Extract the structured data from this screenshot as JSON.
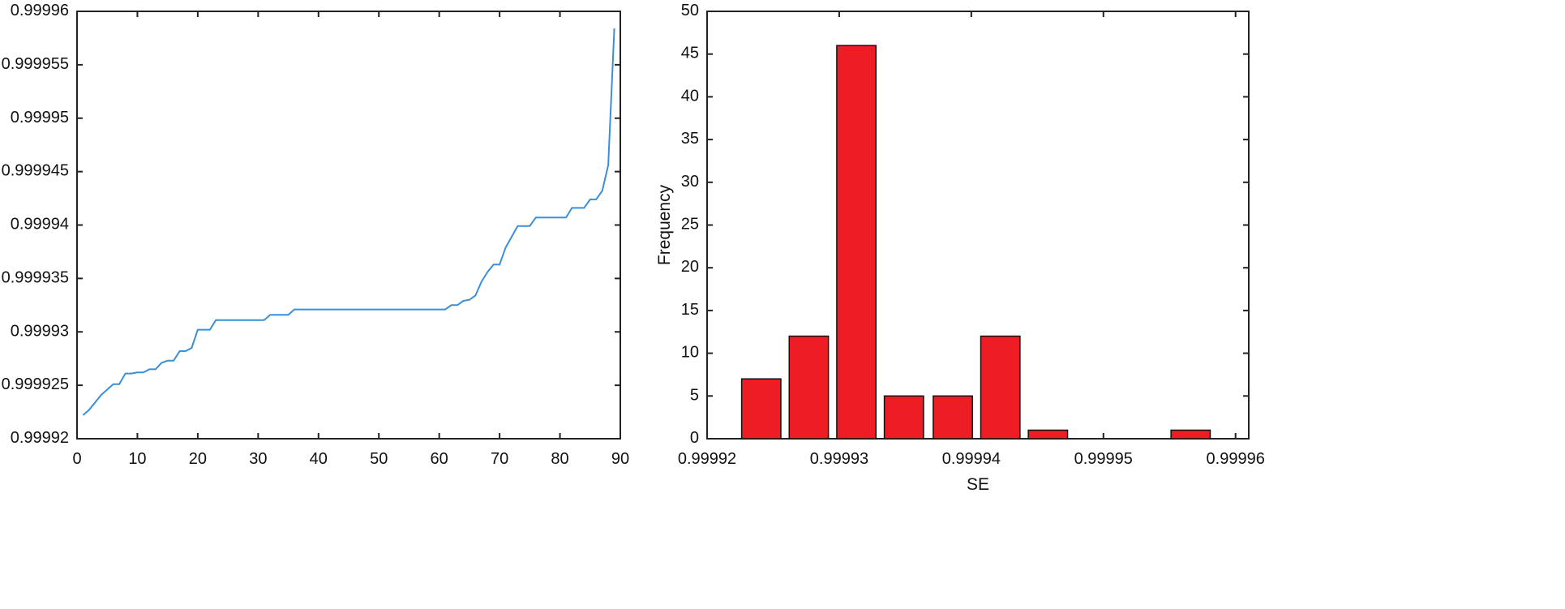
{
  "chart_data": [
    {
      "type": "line",
      "title": "",
      "xlabel": "",
      "ylabel": "",
      "xlim": [
        0,
        90
      ],
      "ylim": [
        0.99992,
        0.99996
      ],
      "xticks": [
        "0",
        "10",
        "20",
        "30",
        "40",
        "50",
        "60",
        "70",
        "80",
        "90"
      ],
      "xtick_values": [
        0,
        10,
        20,
        30,
        40,
        50,
        60,
        70,
        80,
        90
      ],
      "yticks": [
        "0.99992",
        "0.999925",
        "0.99993",
        "0.999935",
        "0.99994",
        "0.999945",
        "0.99995",
        "0.999955",
        "0.99996"
      ],
      "ytick_values": [
        0.99992,
        0.999925,
        0.99993,
        0.999935,
        0.99994,
        0.999945,
        0.99995,
        0.999955,
        0.99996
      ],
      "grid": false,
      "color": "#3a8fd6",
      "x": [
        1,
        2,
        3,
        4,
        5,
        6,
        7,
        8,
        9,
        10,
        11,
        12,
        13,
        14,
        15,
        16,
        17,
        18,
        19,
        20,
        21,
        22,
        23,
        24,
        25,
        26,
        27,
        28,
        29,
        30,
        31,
        32,
        33,
        34,
        35,
        36,
        37,
        38,
        39,
        40,
        41,
        42,
        43,
        44,
        45,
        46,
        47,
        48,
        49,
        50,
        51,
        52,
        53,
        54,
        55,
        56,
        57,
        58,
        59,
        60,
        61,
        62,
        63,
        64,
        65,
        66,
        67,
        68,
        69,
        70,
        71,
        72,
        73,
        74,
        75,
        76,
        77,
        78,
        79,
        80,
        81,
        82,
        83,
        84,
        85,
        86,
        87,
        88,
        89
      ],
      "y": [
        0.9999222,
        0.9999227,
        0.9999234,
        0.9999241,
        0.9999246,
        0.9999251,
        0.9999251,
        0.9999261,
        0.9999261,
        0.9999262,
        0.9999262,
        0.9999265,
        0.9999265,
        0.9999271,
        0.9999273,
        0.9999273,
        0.9999282,
        0.9999282,
        0.9999285,
        0.9999302,
        0.9999302,
        0.9999302,
        0.9999311,
        0.9999311,
        0.9999311,
        0.9999311,
        0.9999311,
        0.9999311,
        0.9999311,
        0.9999311,
        0.9999311,
        0.9999316,
        0.9999316,
        0.9999316,
        0.9999316,
        0.9999321,
        0.9999321,
        0.9999321,
        0.9999321,
        0.9999321,
        0.9999321,
        0.9999321,
        0.9999321,
        0.9999321,
        0.9999321,
        0.9999321,
        0.9999321,
        0.9999321,
        0.9999321,
        0.9999321,
        0.9999321,
        0.9999321,
        0.9999321,
        0.9999321,
        0.9999321,
        0.9999321,
        0.9999321,
        0.9999321,
        0.9999321,
        0.9999321,
        0.9999321,
        0.9999325,
        0.9999325,
        0.9999329,
        0.999933,
        0.9999334,
        0.9999347,
        0.9999356,
        0.9999363,
        0.9999363,
        0.9999379,
        0.9999389,
        0.9999399,
        0.9999399,
        0.9999399,
        0.9999407,
        0.9999407,
        0.9999407,
        0.9999407,
        0.9999407,
        0.9999407,
        0.9999416,
        0.9999416,
        0.9999416,
        0.9999424,
        0.9999424,
        0.9999432,
        0.9999456,
        0.9999584
      ]
    },
    {
      "type": "bar",
      "title": "",
      "xlabel": "SE",
      "ylabel": "Frequency",
      "xlim": [
        0.99992,
        0.999961
      ],
      "ylim": [
        0,
        50
      ],
      "xticks": [
        "0.99992",
        "0.99993",
        "0.99994",
        "0.99995",
        "0.99996"
      ],
      "xtick_values": [
        0.99992,
        0.99993,
        0.99994,
        0.99995,
        0.99996
      ],
      "yticks": [
        "0",
        "5",
        "10",
        "15",
        "20",
        "25",
        "30",
        "35",
        "40",
        "45",
        "50"
      ],
      "ytick_values": [
        0,
        5,
        10,
        15,
        20,
        25,
        30,
        35,
        40,
        45,
        50
      ],
      "grid": false,
      "color": "#ee1c25",
      "bin_centers": [
        0.9999241,
        0.9999277,
        0.9999313,
        0.9999349,
        0.9999386,
        0.9999422,
        0.9999458,
        0.9999494,
        0.999953,
        0.9999566
      ],
      "bin_width": 3.62e-06,
      "values": [
        7,
        12,
        46,
        5,
        5,
        12,
        1,
        0,
        0,
        1
      ]
    }
  ]
}
